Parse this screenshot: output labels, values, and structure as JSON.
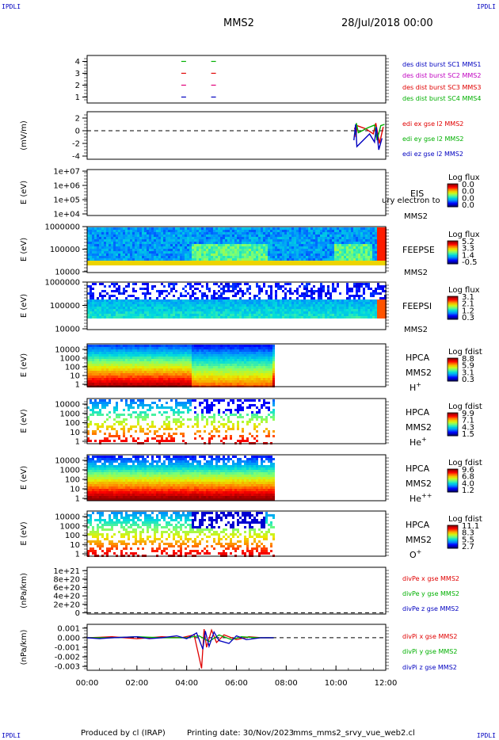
{
  "header": {
    "corner_tl": "IPDLI",
    "corner_tr": "IPDLI",
    "corner_bl": "IPDLI",
    "corner_br": "IPDLI",
    "spacecraft": "MMS2",
    "date": "28/Jul/2018 00:00"
  },
  "footer": {
    "produced": "Produced by cl (IRAP)",
    "printing": "Printing date: 30/Nov/2023",
    "file": "mms_mms2_srvy_vue_web2.cl"
  },
  "time_axis": {
    "ticks": [
      "00:00",
      "02:00",
      "04:00",
      "06:00",
      "08:00",
      "10:00",
      "12:00"
    ],
    "range_hours": [
      0,
      12
    ]
  },
  "colors": {
    "sc1": "#0000c0",
    "sc2": "#e0007a",
    "sc3": "#e00000",
    "sc4": "#00b000",
    "red": "#e00000",
    "green": "#00b000",
    "blue": "#0000c0"
  },
  "chart_data": [
    {
      "type": "scatter",
      "id": "burst",
      "yticks": [
        "4",
        "3",
        "2",
        "1"
      ],
      "ylim": [
        0.5,
        4.5
      ],
      "series": [
        {
          "name": "des dist burst SC1 MMS1",
          "y": 1,
          "x": [
            3.88,
            5.08
          ]
        },
        {
          "name": "des dist burst SC2 MMS2",
          "y": 2,
          "x": [
            3.88,
            5.08
          ]
        },
        {
          "name": "des dist burst SC3 MMS3",
          "y": 3,
          "x": [
            3.88,
            5.08
          ]
        },
        {
          "name": "des dist burst SC4 MMS4",
          "y": 4,
          "x": [
            3.88,
            5.08
          ]
        }
      ]
    },
    {
      "type": "line",
      "id": "edi",
      "ylabel": "(mV/m)",
      "yticks": [
        "2",
        "0",
        "-2",
        "-4"
      ],
      "ylim": [
        -4.5,
        3
      ],
      "series": [
        {
          "name": "edi ex gse l2 MMS2",
          "x": [
            10.75,
            10.8,
            10.85,
            11.2,
            11.5,
            11.6,
            11.75,
            11.9
          ],
          "y": [
            0.5,
            -1.0,
            0.8,
            0.3,
            -0.5,
            1.2,
            -2.0,
            0.6
          ]
        },
        {
          "name": "edi ey gse l2 MMS2",
          "x": [
            10.78,
            10.82,
            10.9,
            11.3,
            11.55,
            11.65,
            11.8,
            11.95
          ],
          "y": [
            -0.6,
            1.2,
            -0.3,
            0.5,
            0.9,
            -1.5,
            0.8,
            1.0
          ]
        },
        {
          "name": "edi ez gse l2 MMS2",
          "x": [
            10.72,
            10.79,
            10.84,
            11.35,
            11.55,
            11.62,
            11.72,
            11.85
          ],
          "y": [
            -1.5,
            1.0,
            -2.5,
            -0.5,
            -1.8,
            0.6,
            -3.0,
            -1.2
          ]
        }
      ]
    },
    {
      "type": "heatmap",
      "id": "eis",
      "ylabel": "E (eV)",
      "yticks": [
        "1e+07",
        "1e+06",
        "1e+05",
        "1e+04"
      ],
      "label1": "EIS",
      "label2": "MMS2",
      "overlay": "ury electron to",
      "colorbar_title": "Log flux",
      "colorbar_ticks": [
        "0.0",
        "0.0",
        "0.0",
        "0.0"
      ],
      "coverage_hours": [
        0,
        0
      ]
    },
    {
      "type": "heatmap",
      "id": "feepse",
      "ylabel": "E (eV)",
      "yticks": [
        "1000000",
        "100000",
        "10000"
      ],
      "label1": "FEEPSE",
      "label2": "MMS2",
      "colorbar_title": "Log flux",
      "colorbar_ticks": [
        "5.2",
        "3.3",
        "1.4",
        "-0.5"
      ],
      "coverage_hours": [
        0,
        12
      ]
    },
    {
      "type": "heatmap",
      "id": "feepsi",
      "ylabel": "E (eV)",
      "yticks": [
        "1000000",
        "100000",
        "10000"
      ],
      "label1": "FEEPSI",
      "label2": "MMS2",
      "colorbar_title": "Log flux",
      "colorbar_ticks": [
        "3.1",
        "2.1",
        "1.2",
        "0.3"
      ],
      "coverage_hours": [
        0,
        12
      ]
    },
    {
      "type": "heatmap",
      "id": "hpca_h",
      "ylabel": "E (eV)",
      "yticks": [
        "10000",
        "1000",
        "100",
        "10",
        "1"
      ],
      "label1": "HPCA",
      "label2": "MMS2",
      "species": "H",
      "charge": "+",
      "colorbar_title": "Log fdist",
      "colorbar_ticks": [
        "8.8",
        "5.9",
        "3.1",
        "0.3"
      ],
      "coverage_hours": [
        0,
        7.5
      ]
    },
    {
      "type": "heatmap",
      "id": "hpca_he",
      "ylabel": "E (eV)",
      "yticks": [
        "10000",
        "1000",
        "100",
        "10",
        "1"
      ],
      "label1": "HPCA",
      "label2": "MMS2",
      "species": "He",
      "charge": "+",
      "colorbar_title": "Log fdist",
      "colorbar_ticks": [
        "9.9",
        "7.1",
        "4.3",
        "1.5"
      ],
      "coverage_hours": [
        0,
        7.5
      ]
    },
    {
      "type": "heatmap",
      "id": "hpca_hepp",
      "ylabel": "E (eV)",
      "yticks": [
        "10000",
        "1000",
        "100",
        "10",
        "1"
      ],
      "label1": "HPCA",
      "label2": "MMS2",
      "species": "He",
      "charge": "++",
      "colorbar_title": "Log fdist",
      "colorbar_ticks": [
        "9.6",
        "6.8",
        "4.0",
        "1.2"
      ],
      "coverage_hours": [
        0,
        7.5
      ]
    },
    {
      "type": "heatmap",
      "id": "hpca_o",
      "ylabel": "E (eV)",
      "yticks": [
        "10000",
        "1000",
        "100",
        "10",
        "1"
      ],
      "label1": "HPCA",
      "label2": "MMS2",
      "species": "O",
      "charge": "+",
      "colorbar_title": "Log fdist",
      "colorbar_ticks": [
        "11.1",
        "8.3",
        "5.5",
        "2.7"
      ],
      "coverage_hours": [
        0,
        7.5
      ]
    },
    {
      "type": "line",
      "id": "divpe",
      "ylabel": "(nPa/km)",
      "yticks": [
        "1e+21",
        "8e+20",
        "6e+20",
        "4e+20",
        "2e+20",
        "0"
      ],
      "ylim": [
        -3e+19,
        1.08e+21
      ],
      "series": [
        {
          "name": "divPe x gse MMS2",
          "x": [],
          "y": []
        },
        {
          "name": "divPe y gse MMS2",
          "x": [],
          "y": []
        },
        {
          "name": "divPe z gse MMS2",
          "x": [],
          "y": []
        }
      ]
    },
    {
      "type": "line",
      "id": "divpi",
      "ylabel": "(nPa/km)",
      "yticks": [
        "0.001",
        "0.000",
        "-0.001",
        "-0.002",
        "-0.003"
      ],
      "ylim": [
        -0.0034,
        0.0014
      ],
      "series": [
        {
          "name": "divPi x gse MMS2",
          "x": [
            0.0,
            1.0,
            1.5,
            2.0,
            3.0,
            3.8,
            4.3,
            4.6,
            4.7,
            4.8,
            5.0,
            5.2,
            5.5,
            6.0,
            6.5,
            7.0,
            7.5
          ],
          "y": [
            0.0,
            0.0001,
            0.0,
            -0.0001,
            0.0001,
            0.0,
            0.0003,
            -0.0032,
            0.0009,
            -0.001,
            0.0008,
            -0.0005,
            0.0003,
            -0.0002,
            0.0001,
            0.0,
            0.0
          ]
        },
        {
          "name": "divPi y gse MMS2",
          "x": [
            0.0,
            1.0,
            2.0,
            3.0,
            4.0,
            4.5,
            4.9,
            5.3,
            5.8,
            6.2,
            6.8,
            7.5
          ],
          "y": [
            0.0,
            0.0,
            0.0001,
            0.0,
            0.0,
            0.0002,
            -0.0004,
            0.0003,
            -0.0002,
            0.0001,
            0.0,
            0.0
          ]
        },
        {
          "name": "divPi z gse MMS2",
          "x": [
            0.0,
            0.5,
            1.0,
            2.0,
            2.5,
            3.0,
            3.6,
            4.0,
            4.4,
            4.65,
            4.75,
            4.9,
            5.1,
            5.3,
            5.7,
            6.0,
            6.4,
            7.0,
            7.5
          ],
          "y": [
            0.0,
            -0.0001,
            0.0,
            0.0001,
            -0.0001,
            0.0,
            0.0002,
            -0.0001,
            0.0005,
            -0.0012,
            0.0007,
            -0.0009,
            0.0006,
            -0.0003,
            -0.0006,
            0.0002,
            -0.0002,
            0.0,
            0.0
          ]
        }
      ]
    }
  ]
}
